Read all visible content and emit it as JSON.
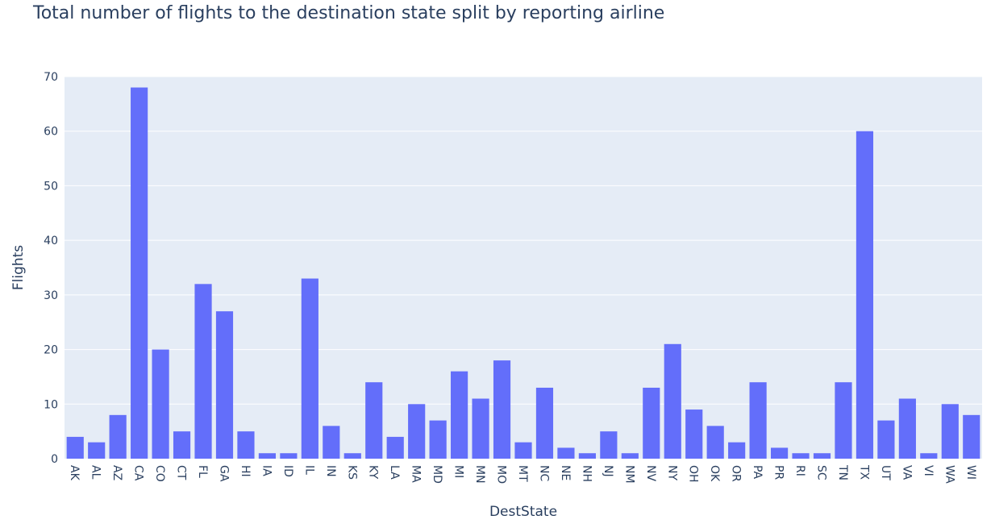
{
  "chart_data": {
    "type": "bar",
    "title": "Total number of flights to the destination state split by reporting airline",
    "xlabel": "DestState",
    "ylabel": "Flights",
    "ylim": [
      0,
      70
    ],
    "yticks": [
      0,
      10,
      20,
      30,
      40,
      50,
      60,
      70
    ],
    "grid": true,
    "categories": [
      "AK",
      "AL",
      "AZ",
      "CA",
      "CO",
      "CT",
      "FL",
      "GA",
      "HI",
      "IA",
      "ID",
      "IL",
      "IN",
      "KS",
      "KY",
      "LA",
      "MA",
      "MD",
      "MI",
      "MN",
      "MO",
      "MT",
      "NC",
      "NE",
      "NH",
      "NJ",
      "NM",
      "NV",
      "NY",
      "OH",
      "OK",
      "OR",
      "PA",
      "PR",
      "RI",
      "SC",
      "TN",
      "TX",
      "UT",
      "VA",
      "VI",
      "WA",
      "WI"
    ],
    "values": [
      4,
      3,
      8,
      68,
      20,
      5,
      32,
      27,
      5,
      1,
      1,
      33,
      6,
      1,
      14,
      4,
      10,
      7,
      16,
      11,
      18,
      3,
      13,
      2,
      1,
      5,
      1,
      13,
      21,
      9,
      6,
      3,
      14,
      2,
      1,
      1,
      14,
      60,
      7,
      11,
      1,
      10,
      8
    ]
  },
  "colors": {
    "bar": "#636efa",
    "plot_bg": "#e5ecf6",
    "grid": "#ffffff",
    "text": "#2a3f5f"
  }
}
